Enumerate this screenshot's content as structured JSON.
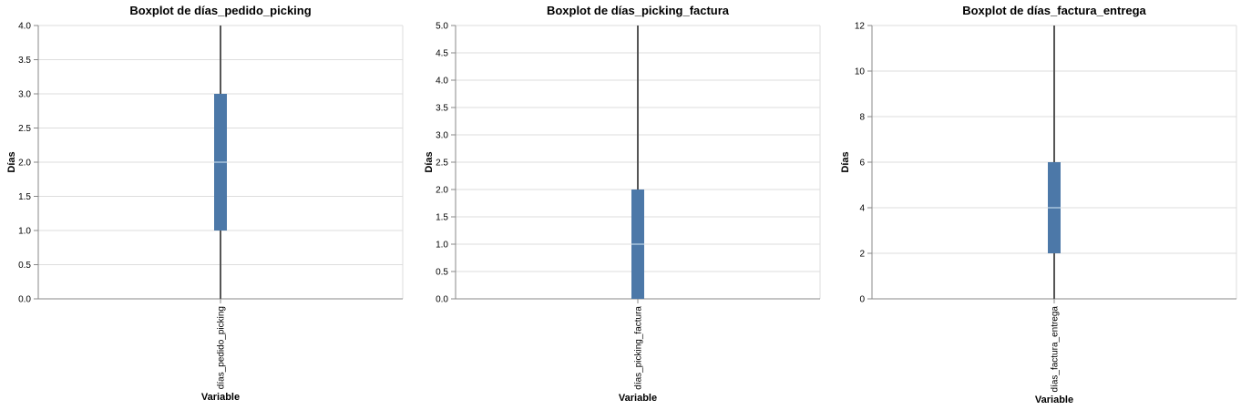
{
  "chart_data": [
    {
      "type": "boxplot",
      "title": "Boxplot de días_pedido_picking",
      "xlabel": "Variable",
      "ylabel": "Días",
      "categories": [
        "días_pedido_picking"
      ],
      "ylim": [
        0,
        4
      ],
      "yticks": [
        "0.0",
        "0.5",
        "1.0",
        "1.5",
        "2.0",
        "2.5",
        "3.0",
        "3.5",
        "4.0"
      ],
      "box": {
        "q1": 1,
        "median": 2,
        "q3": 3,
        "whisker_low": 0,
        "whisker_high": 4
      },
      "grid": true
    },
    {
      "type": "boxplot",
      "title": "Boxplot de días_picking_factura",
      "xlabel": "Variable",
      "ylabel": "Días",
      "categories": [
        "días_picking_factura"
      ],
      "ylim": [
        0,
        5
      ],
      "yticks": [
        "0.0",
        "0.5",
        "1.0",
        "1.5",
        "2.0",
        "2.5",
        "3.0",
        "3.5",
        "4.0",
        "4.5",
        "5.0"
      ],
      "box": {
        "q1": 0,
        "median": 1,
        "q3": 2,
        "whisker_low": 0,
        "whisker_high": 5
      },
      "grid": true
    },
    {
      "type": "boxplot",
      "title": "Boxplot de días_factura_entrega",
      "xlabel": "Variable",
      "ylabel": "Días",
      "categories": [
        "días_factura_entrega"
      ],
      "ylim": [
        0,
        12
      ],
      "yticks": [
        "0",
        "2",
        "4",
        "6",
        "8",
        "10",
        "12"
      ],
      "box": {
        "q1": 2,
        "median": 4,
        "q3": 6,
        "whisker_low": 0,
        "whisker_high": 12
      },
      "grid": true
    }
  ],
  "colors": {
    "box": "#4c78a8",
    "median": "#a8c4de",
    "whisker": "#555555"
  }
}
